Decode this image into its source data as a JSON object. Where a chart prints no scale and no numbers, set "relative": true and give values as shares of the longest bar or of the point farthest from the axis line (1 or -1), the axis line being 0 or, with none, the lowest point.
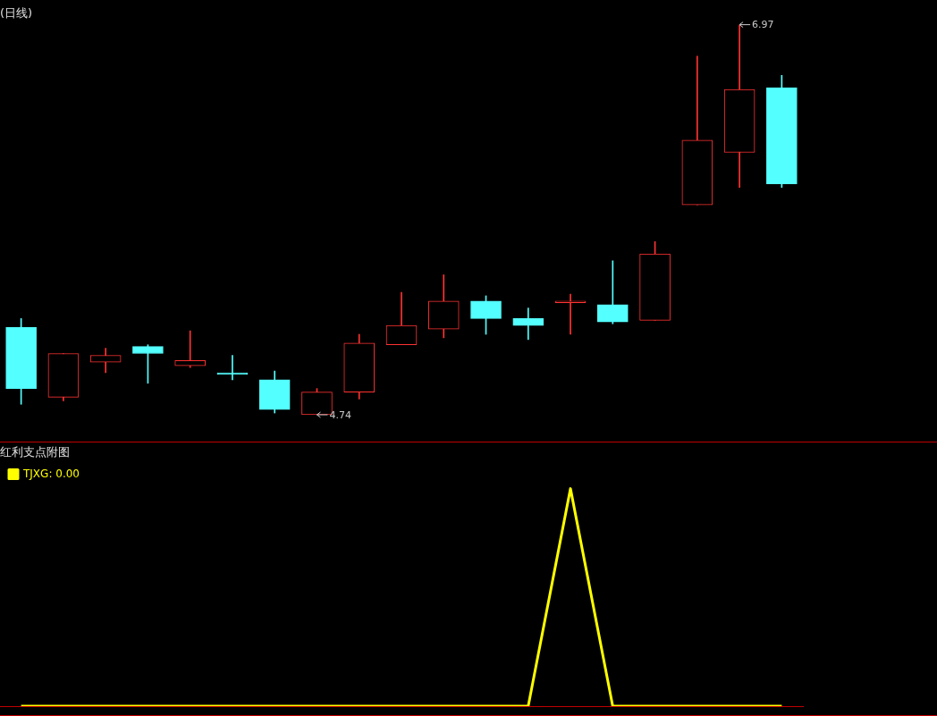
{
  "chart_data": [
    {
      "type": "candlestick",
      "title": "(日线)",
      "categories": [
        null,
        null,
        null,
        null,
        null,
        null,
        null,
        null,
        null,
        null,
        null,
        null,
        null,
        null,
        null,
        null,
        null,
        null,
        null
      ],
      "ohlc": [
        [
          5.24,
          5.29,
          4.8,
          4.89
        ],
        [
          4.84,
          5.09,
          4.82,
          5.09
        ],
        [
          5.04,
          5.12,
          4.98,
          5.08
        ],
        [
          5.13,
          5.14,
          4.92,
          5.09
        ],
        [
          5.02,
          5.22,
          5.01,
          5.05
        ],
        [
          4.98,
          5.08,
          4.94,
          4.97
        ],
        [
          4.94,
          4.99,
          4.75,
          4.77
        ],
        [
          4.74,
          4.89,
          4.74,
          4.87
        ],
        [
          4.87,
          5.2,
          4.83,
          5.15
        ],
        [
          5.14,
          5.44,
          5.14,
          5.25
        ],
        [
          5.23,
          5.54,
          5.18,
          5.39
        ],
        [
          5.39,
          5.42,
          5.2,
          5.29
        ],
        [
          5.29,
          5.35,
          5.17,
          5.25
        ],
        [
          5.38,
          5.43,
          5.2,
          5.39
        ],
        [
          5.37,
          5.62,
          5.26,
          5.27
        ],
        [
          5.28,
          5.73,
          5.28,
          5.66
        ],
        [
          5.94,
          6.79,
          5.94,
          6.31
        ],
        [
          6.24,
          6.97,
          6.04,
          6.6
        ],
        [
          6.61,
          6.68,
          6.04,
          6.06
        ]
      ],
      "colors": [
        "#54ffff",
        "#ff3232",
        "#ff3232",
        "#54ffff",
        "#ff3232",
        "#54ffff",
        "#54ffff",
        "#ff3232",
        "#ff3232",
        "#ff3232",
        "#ff3232",
        "#54ffff",
        "#54ffff",
        "#ff3232",
        "#54ffff",
        "#ff3232",
        "#ff3232",
        "#ff3232",
        "#54ffff"
      ],
      "annotations": [
        "6.97",
        "4.74"
      ],
      "legend": false
    },
    {
      "type": "line",
      "title": "红利支点附图",
      "relative": true,
      "categories": [
        null,
        null,
        null,
        null,
        null,
        null,
        null,
        null,
        null,
        null,
        null,
        null,
        null,
        null,
        null,
        null,
        null,
        null,
        null
      ],
      "series": [
        {
          "name": "TJXG: 0.00",
          "color": "#ffff00",
          "values": [
            0,
            0,
            0,
            0,
            0,
            0,
            0,
            0,
            0,
            0,
            0,
            0,
            0,
            1,
            0,
            0,
            0,
            0,
            0
          ]
        }
      ],
      "legend": "top left"
    }
  ]
}
